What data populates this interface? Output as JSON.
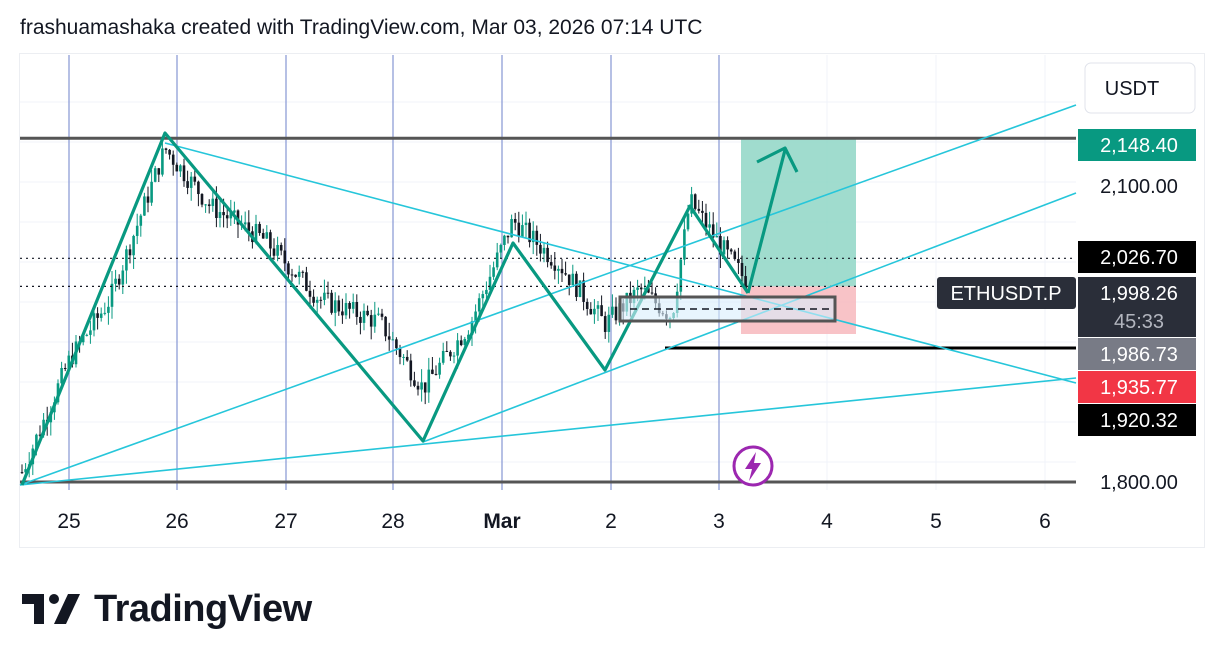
{
  "header": {
    "attribution": "frashuamashaka created with TradingView.com, Mar 03, 2026 07:14 UTC"
  },
  "brand": {
    "name": "TradingView"
  },
  "chart_data": {
    "type": "candlestick",
    "symbol": "ETHUSDT.P",
    "currency": "USDT",
    "x_ticks": [
      "25",
      "26",
      "27",
      "28",
      "Mar",
      "2",
      "3",
      "4",
      "5",
      "6"
    ],
    "y_ticks": [
      "2,100.00",
      "1,800.00"
    ],
    "ylim": [
      1800,
      2160
    ],
    "price_labels": [
      {
        "name": "target",
        "text": "2,148.40",
        "value": 2148.4,
        "color": "#089981",
        "text_color": "#ffffff"
      },
      {
        "name": "level-high",
        "text": "2,026.70",
        "value": 2026.7,
        "color": "#000000",
        "text_color": "#ffffff"
      },
      {
        "name": "current",
        "text": "1,998.26",
        "value": 1998.26,
        "color": "#2a2e39",
        "text_color": "#ffffff"
      },
      {
        "name": "countdown",
        "text": "45:33",
        "color": "#2a2e39",
        "text_color": "#b2b5be"
      },
      {
        "name": "level-mid",
        "text": "1,986.73",
        "value": 1986.73,
        "color": "#787b86",
        "text_color": "#ffffff"
      },
      {
        "name": "stop",
        "text": "1,935.77",
        "value": 1935.77,
        "color": "#f23645",
        "text_color": "#ffffff"
      },
      {
        "name": "level-low",
        "text": "1,920.32",
        "value": 1920.32,
        "color": "#000000",
        "text_color": "#ffffff"
      }
    ],
    "colors": {
      "up": "#089981",
      "down": "#131722",
      "trendline": "#26c6da",
      "zigzag": "#089981",
      "profit_zone": "#8fd6c6",
      "loss_zone": "#f7b8bd",
      "vline": "#7d8fd0"
    },
    "grid": true
  }
}
